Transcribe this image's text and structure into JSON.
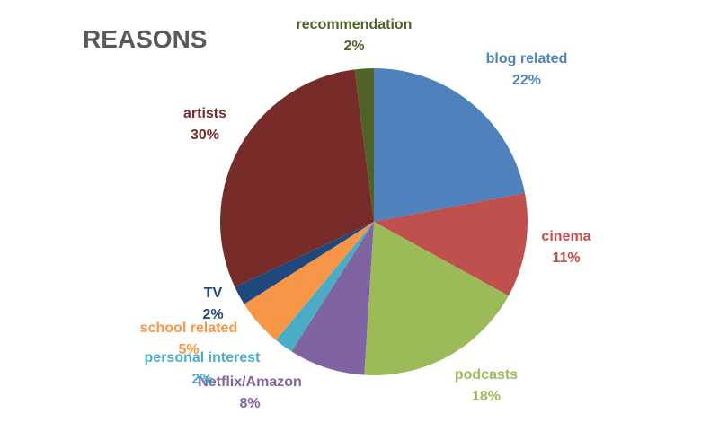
{
  "chart_data": {
    "type": "pie",
    "title": "REASONS",
    "start_angle_deg": 0,
    "direction": "clockwise",
    "slices": [
      {
        "name": "blog related",
        "value": 22,
        "label": "22%",
        "color": "#4F81BD"
      },
      {
        "name": "cinema",
        "value": 11,
        "label": "11%",
        "color": "#C0504D"
      },
      {
        "name": "podcasts",
        "value": 18,
        "label": "18%",
        "color": "#9BBB59"
      },
      {
        "name": "Netflix/Amazon",
        "value": 8,
        "label": "8%",
        "color": "#8064A2"
      },
      {
        "name": "personal interest",
        "value": 2,
        "label": "2%",
        "color": "#4BACC6"
      },
      {
        "name": "school related",
        "value": 5,
        "label": "5%",
        "color": "#F79646"
      },
      {
        "name": "TV",
        "value": 2,
        "label": "2%",
        "color": "#1F497D"
      },
      {
        "name": "artists",
        "value": 30,
        "label": "30%",
        "color": "#772C2A"
      },
      {
        "name": "recommendation",
        "value": 2,
        "label": "2%",
        "color": "#4F6228"
      }
    ]
  }
}
